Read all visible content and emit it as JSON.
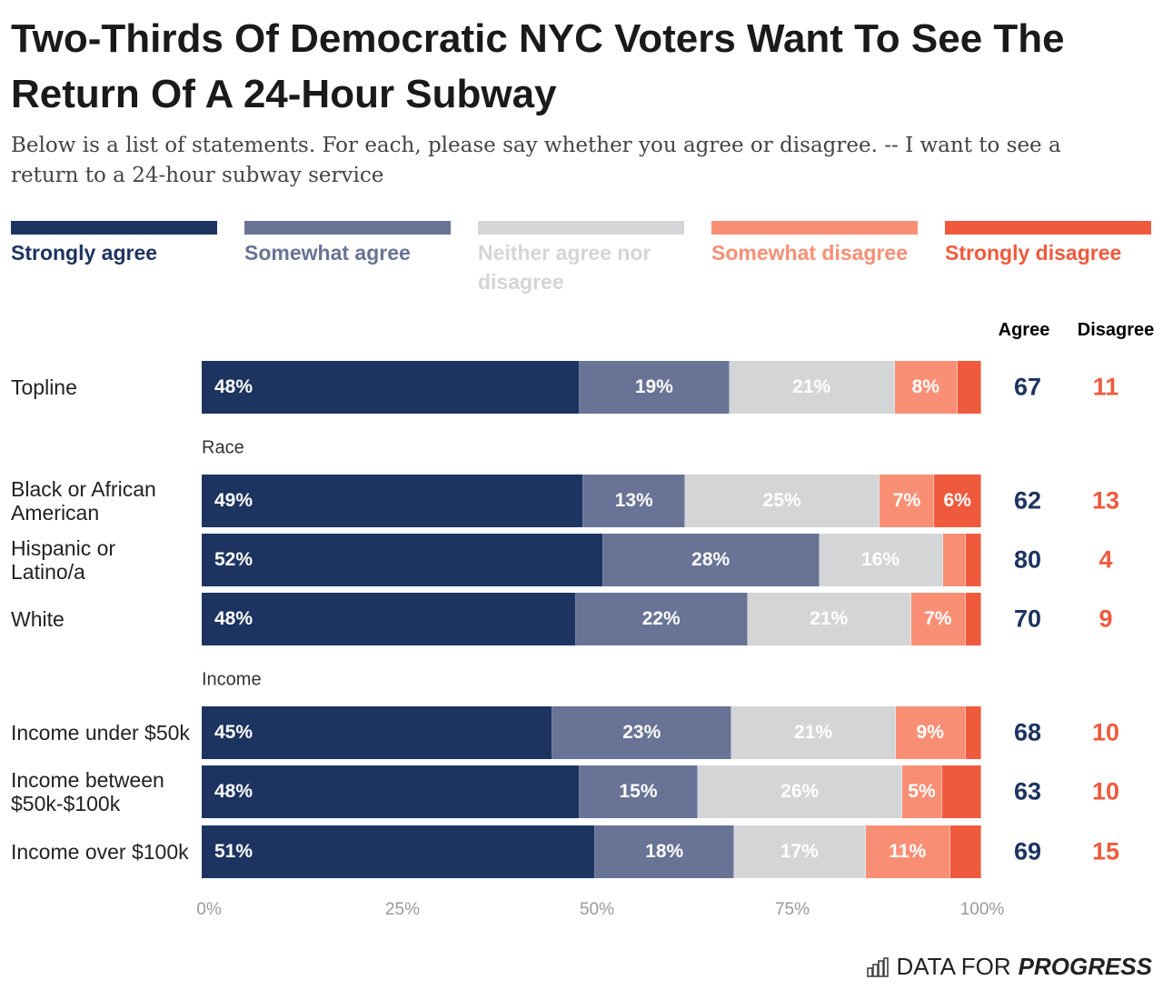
{
  "title": "Two-Thirds Of Democratic NYC Voters Want To See The Return Of A 24-Hour Subway",
  "subtitle": "Below is a list of statements. For each, please say whether you agree or disagree. -- I want to see a return to a 24-hour subway service",
  "legend": [
    {
      "label": "Strongly agree",
      "color": "#1d3461"
    },
    {
      "label": "Somewhat agree",
      "color": "#687396"
    },
    {
      "label": "Neither agree nor disagree",
      "color": "#d4d5d7"
    },
    {
      "label": "Somewhat disagree",
      "color": "#f88f75"
    },
    {
      "label": "Strongly disagree",
      "color": "#ef5a3c"
    }
  ],
  "columns": {
    "agree": "Agree",
    "disagree": "Disagree",
    "agree_color": "#1d3461",
    "disagree_color": "#ef5a3c"
  },
  "footer": {
    "logo_light": "DATA FOR",
    "logo_bold": "PROGRESS"
  },
  "chart_data": {
    "type": "bar",
    "orientation": "horizontal",
    "stacked": true,
    "xlim": [
      0,
      100
    ],
    "x_ticks": [
      "0%",
      "25%",
      "50%",
      "75%",
      "100%"
    ],
    "series_names": [
      "Strongly agree",
      "Somewhat agree",
      "Neither agree nor disagree",
      "Somewhat disagree",
      "Strongly disagree"
    ],
    "rows": [
      {
        "group": "",
        "label": "Topline",
        "values": [
          48,
          19,
          21,
          8,
          3
        ],
        "labels": [
          "48%",
          "19%",
          "21%",
          "8%",
          ""
        ],
        "agree": "67",
        "disagree": "11"
      },
      {
        "group": "Race",
        "label": "Black or African American",
        "values": [
          49,
          13,
          25,
          7,
          6
        ],
        "labels": [
          "49%",
          "13%",
          "25%",
          "7%",
          "6%"
        ],
        "agree": "62",
        "disagree": "13"
      },
      {
        "group": "",
        "label": "Hispanic or Latino/a",
        "values": [
          52,
          28,
          16,
          3,
          2
        ],
        "labels": [
          "52%",
          "28%",
          "16%",
          "",
          ""
        ],
        "agree": "80",
        "disagree": "4"
      },
      {
        "group": "",
        "label": "White",
        "values": [
          48,
          22,
          21,
          7,
          2
        ],
        "labels": [
          "48%",
          "22%",
          "21%",
          "7%",
          ""
        ],
        "agree": "70",
        "disagree": "9"
      },
      {
        "group": "Income",
        "label": "Income under $50k",
        "values": [
          45,
          23,
          21,
          9,
          2
        ],
        "labels": [
          "45%",
          "23%",
          "21%",
          "9%",
          ""
        ],
        "agree": "68",
        "disagree": "10"
      },
      {
        "group": "",
        "label": "Income between $50k-$100k",
        "values": [
          48,
          15,
          26,
          5,
          5
        ],
        "labels": [
          "48%",
          "15%",
          "26%",
          "5%",
          ""
        ],
        "agree": "63",
        "disagree": "10"
      },
      {
        "group": "",
        "label": "Income over $100k",
        "values": [
          51,
          18,
          17,
          11,
          4
        ],
        "labels": [
          "51%",
          "18%",
          "17%",
          "11%",
          ""
        ],
        "agree": "69",
        "disagree": "15"
      }
    ]
  }
}
